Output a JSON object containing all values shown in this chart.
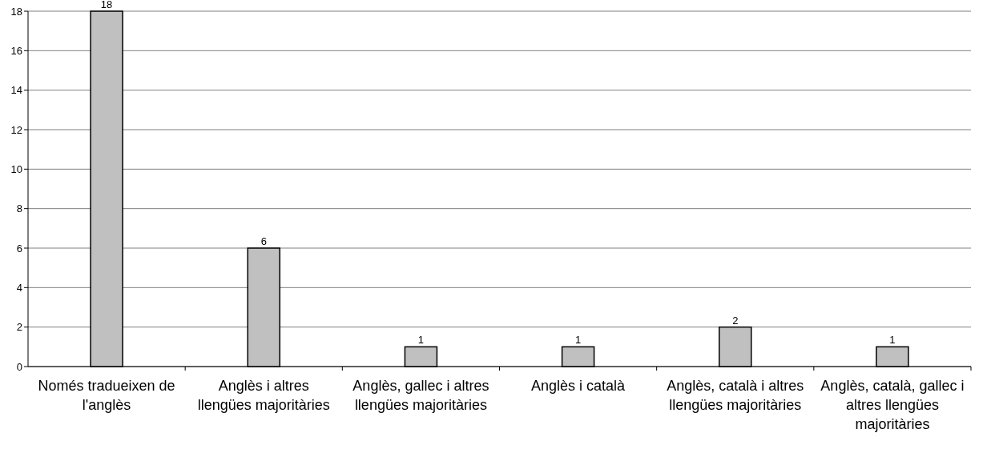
{
  "chart_data": {
    "type": "bar",
    "categories": [
      "Només tradueixen de l'anglès",
      "Anglès i altres llengües majoritàries",
      "Anglès, gallec i altres llengües majoritàries",
      "Anglès i català",
      "Anglès, català i altres llengües majoritàries",
      "Anglès, català, gallec i altres llengües majoritàries"
    ],
    "values": [
      18,
      6,
      1,
      1,
      2,
      1
    ],
    "color": "#c0c0c0",
    "ylim": [
      0,
      18
    ],
    "yticks": [
      0,
      2,
      4,
      6,
      8,
      10,
      12,
      14,
      16,
      18
    ],
    "grid": "y",
    "data_labels": true
  }
}
